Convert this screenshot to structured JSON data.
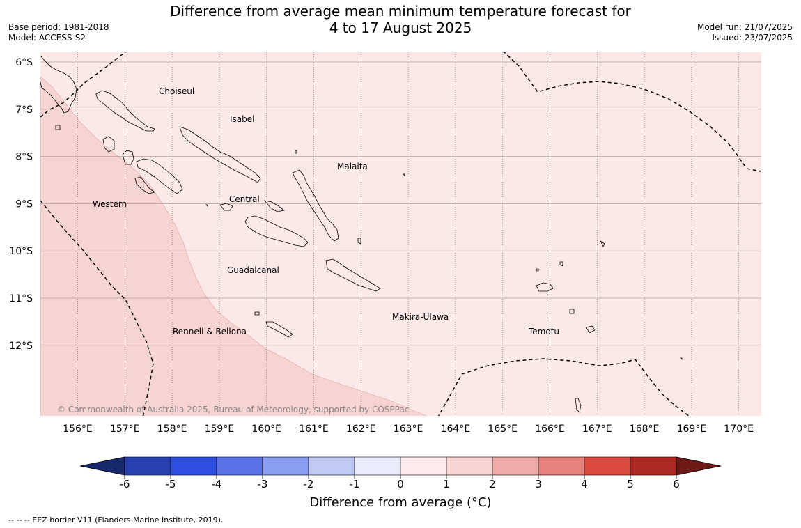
{
  "title": {
    "line1": "Difference from average mean minimum temperature forecast for",
    "line2": "4 to 17 August 2025"
  },
  "meta": {
    "base_period": "Base period: 1981-2018",
    "model": "Model: ACCESS-S2",
    "model_run": "Model run: 21/07/2025",
    "issued": "Issued: 23/07/2025"
  },
  "map": {
    "lat_labels": [
      "6°S",
      "7°S",
      "8°S",
      "9°S",
      "10°S",
      "11°S",
      "12°S"
    ],
    "lon_labels": [
      "156°E",
      "157°E",
      "158°E",
      "159°E",
      "160°E",
      "161°E",
      "162°E",
      "163°E",
      "164°E",
      "165°E",
      "166°E",
      "167°E",
      "168°E",
      "169°E",
      "170°E"
    ],
    "regions": {
      "choiseul": "Choiseul",
      "isabel": "Isabel",
      "malaita": "Malaita",
      "western": "Western",
      "central": "Central",
      "guadalcanal": "Guadalcanal",
      "makira": "Makira-Ulawa",
      "rennell": "Rennell & Bellona",
      "temotu": "Temotu"
    },
    "copyright": "© Commonwealth of Australia 2025, Bureau of Meteorology, supported by COSPPac",
    "colors": {
      "range_1_2": "#fbe9e8",
      "range_2_3": "#f6d4d2"
    }
  },
  "colorbar": {
    "title": "Difference from average (°C)",
    "ticks": [
      "-6",
      "-5",
      "-4",
      "-3",
      "-2",
      "-1",
      "0",
      "1",
      "2",
      "3",
      "4",
      "5",
      "6"
    ],
    "colors": [
      "#17276b",
      "#2a41b0",
      "#2f4fe0",
      "#5a73e6",
      "#8a9dee",
      "#c1c9f5",
      "#e9ecfd",
      "#fcebea",
      "#f6d4d2",
      "#eeaba8",
      "#e6827c",
      "#db4a41",
      "#ad2a23",
      "#6e1b18"
    ]
  },
  "footnote": "-- -- -- EEZ border V11 (Flanders Marine Institute, 2019)."
}
